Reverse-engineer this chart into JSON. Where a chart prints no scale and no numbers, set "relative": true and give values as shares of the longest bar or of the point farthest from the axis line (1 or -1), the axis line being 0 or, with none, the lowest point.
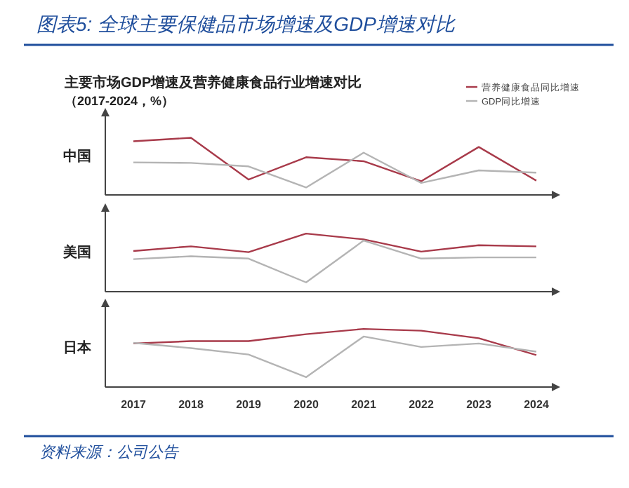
{
  "chart_data": [
    {
      "type": "line",
      "title": "图表5: 全球主要保健品市场增速及GDP增速对比",
      "subtitle": "主要市场GDP增速及营养健康食品行业增速对比（2017-2024，%）",
      "ylabel": "中国",
      "relative": true,
      "legend": "top right",
      "categories": [
        null,
        null,
        null,
        null,
        null,
        null,
        null,
        null
      ],
      "series": [
        {
          "name": "营养健康食品同比增速",
          "color": "#a83a4a",
          "values": [
            0.94,
            1,
            0.27,
            0.66,
            0.59,
            0.24,
            0.84,
            0.25
          ]
        },
        {
          "name": "GDP同比增速",
          "color": "#b4b4b4",
          "values": [
            0.57,
            0.56,
            0.5,
            0.13,
            0.74,
            0.21,
            0.43,
            0.39
          ]
        }
      ]
    },
    {
      "type": "line",
      "ylabel": "美国",
      "relative": true,
      "categories": [
        null,
        null,
        null,
        null,
        null,
        null,
        null,
        null
      ],
      "series": [
        {
          "color": "#a83a4a",
          "values": [
            0.7,
            0.78,
            0.68,
            1,
            0.9,
            0.69,
            0.8,
            0.78
          ]
        },
        {
          "color": "#b4b4b4",
          "values": [
            0.56,
            0.61,
            0.57,
            0.16,
            0.88,
            0.57,
            0.59,
            0.59
          ]
        }
      ]
    },
    {
      "type": "line",
      "ylabel": "日本",
      "relative": true,
      "annotations": [
        "资料来源：公司公告"
      ],
      "categories": [
        "2017",
        "2018",
        "2019",
        "2020",
        "2021",
        "2022",
        "2023",
        "2024"
      ],
      "series": [
        {
          "color": "#a83a4a",
          "values": [
            0.75,
            0.79,
            0.79,
            0.91,
            1,
            0.97,
            0.84,
            0.55
          ]
        },
        {
          "color": "#b4b4b4",
          "values": [
            0.76,
            0.67,
            0.56,
            0.17,
            0.87,
            0.69,
            0.75,
            0.61
          ]
        }
      ]
    }
  ]
}
